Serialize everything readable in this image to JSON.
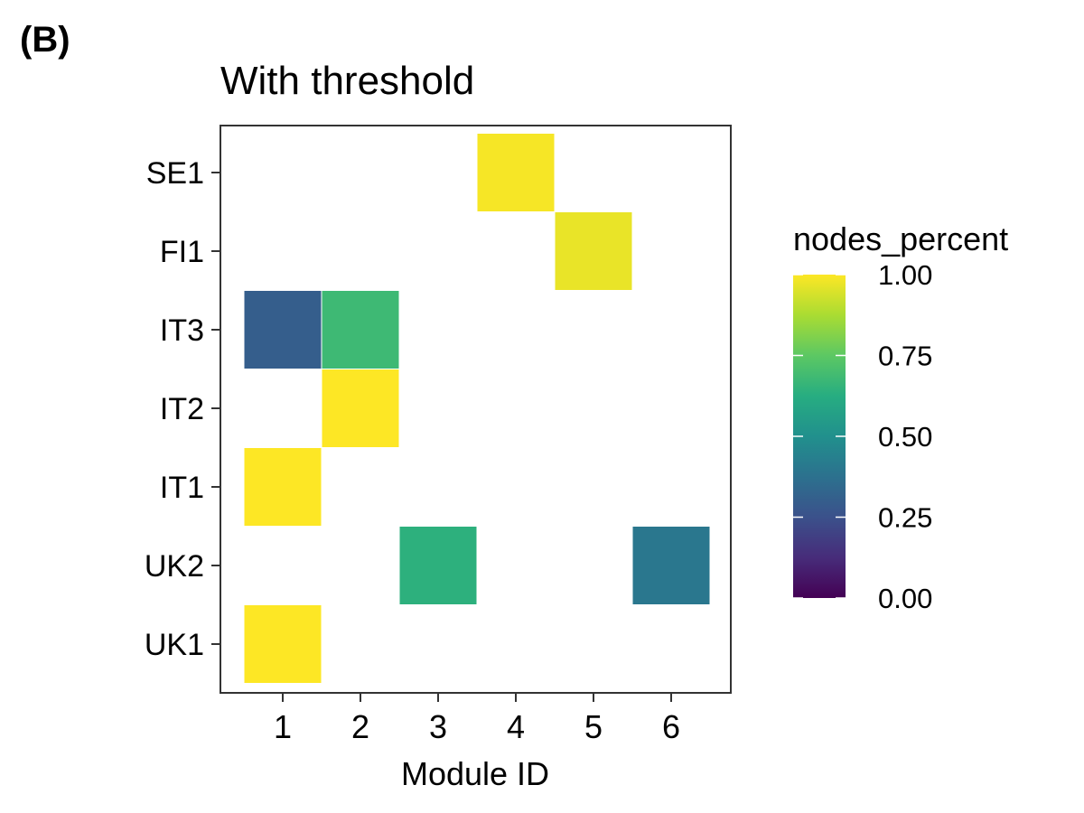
{
  "panel_label": "(B)",
  "chart_data": {
    "type": "heatmap",
    "title": "With threshold",
    "xlabel": "Module ID",
    "ylabel": "",
    "x_categories": [
      "1",
      "2",
      "3",
      "4",
      "5",
      "6"
    ],
    "y_categories": [
      "SE1",
      "FI1",
      "IT3",
      "IT2",
      "IT1",
      "UK2",
      "UK1"
    ],
    "cells": [
      {
        "x": "4",
        "y": "SE1",
        "value": 0.99
      },
      {
        "x": "5",
        "y": "FI1",
        "value": 0.97
      },
      {
        "x": "1",
        "y": "IT3",
        "value": 0.3
      },
      {
        "x": "2",
        "y": "IT3",
        "value": 0.68
      },
      {
        "x": "2",
        "y": "IT2",
        "value": 1.0
      },
      {
        "x": "1",
        "y": "IT1",
        "value": 1.0
      },
      {
        "x": "3",
        "y": "UK2",
        "value": 0.64
      },
      {
        "x": "6",
        "y": "UK2",
        "value": 0.4
      },
      {
        "x": "1",
        "y": "UK1",
        "value": 1.0
      }
    ],
    "legend": {
      "title": "nodes_percent",
      "ticks": [
        "1.00",
        "0.75",
        "0.50",
        "0.25",
        "0.00"
      ],
      "tick_values": [
        1.0,
        0.75,
        0.5,
        0.25,
        0.0
      ],
      "range": [
        0,
        1
      ],
      "colormap": "viridis",
      "placement": "right"
    },
    "grid": false
  }
}
